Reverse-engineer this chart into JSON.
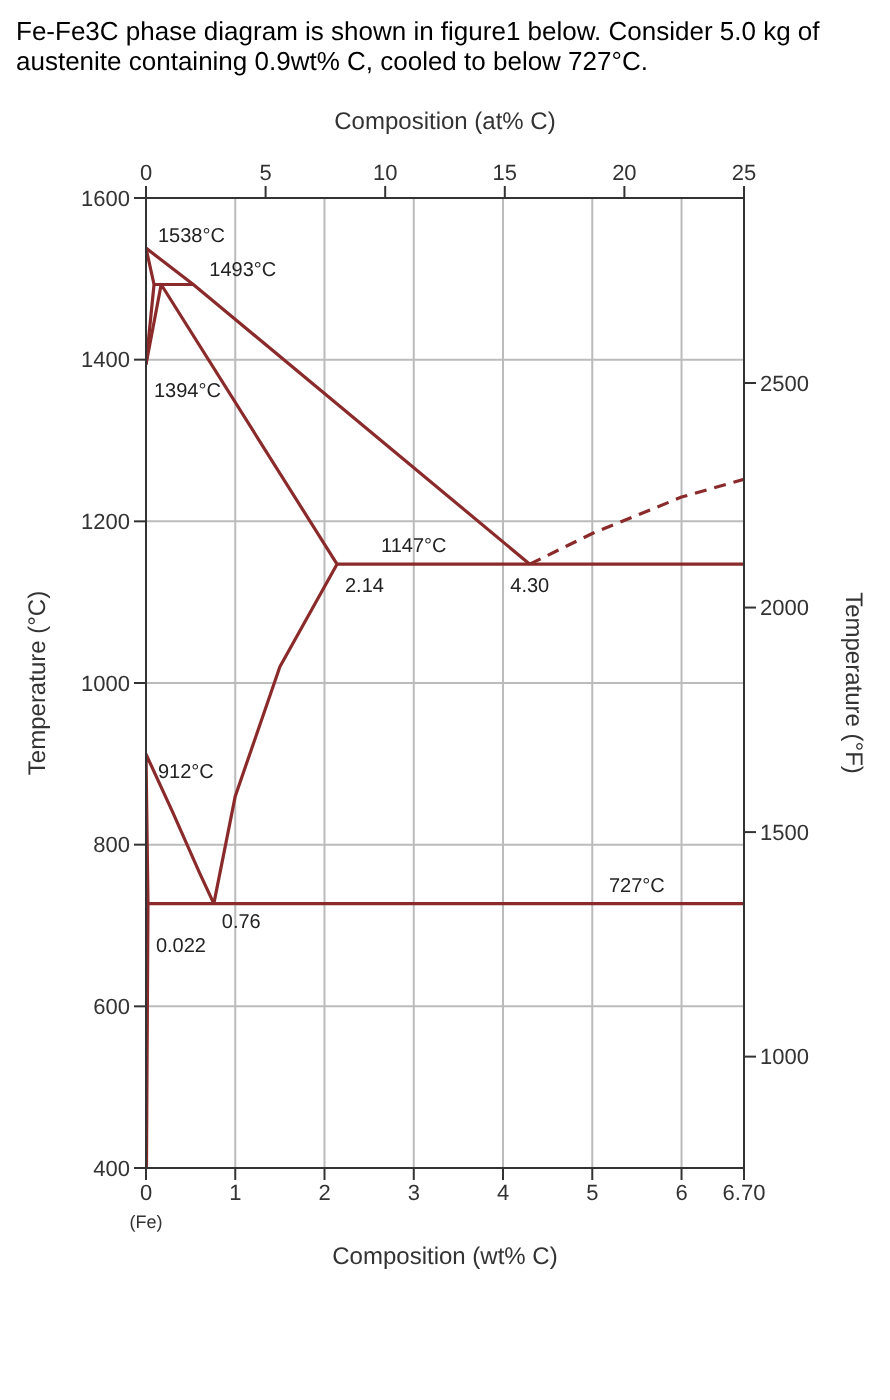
{
  "chart_data": {
    "type": "line",
    "title": "Fe-Fe3C phase diagram is shown in figure1 below. Consider 5.0 kg of austenite containing 0.9wt% C, cooled to below 727°C.",
    "xlabel": "Composition (wt% C)",
    "ylabel": "Temperature (°C)",
    "x2label": "Composition (at% C)",
    "y2label": "Temperature (°F)",
    "xlim": [
      0,
      6.7
    ],
    "xticks": [
      0,
      1,
      2,
      3,
      4,
      5,
      6,
      {
        "value": 6.7,
        "label": "6.70"
      }
    ],
    "ylim": [
      400,
      1600
    ],
    "yticks": [
      400,
      600,
      800,
      1000,
      1200,
      1400,
      1600
    ],
    "x2lim": [
      0,
      25
    ],
    "x2ticks": [
      0,
      5,
      10,
      15,
      20,
      25
    ],
    "y2lim": [
      752,
      2912
    ],
    "y2ticks": [
      1000,
      1500,
      2000,
      2500
    ],
    "grid": true,
    "series": [
      {
        "color": "#8b2a2a",
        "x": [
          0,
          0.53,
          4.3
        ],
        "values": [
          1538,
          1493,
          1147
        ]
      },
      {
        "color": "#8b2a2a",
        "line_style": "dashed",
        "x": [
          4.3,
          5,
          6,
          6.7
        ],
        "values": [
          1147,
          1185,
          1230,
          1252
        ]
      },
      {
        "color": "#8b2a2a",
        "x": [
          0,
          0.09,
          0
        ],
        "values": [
          1538,
          1493,
          1394
        ]
      },
      {
        "color": "#8b2a2a",
        "x": [
          0.09,
          0.53
        ],
        "values": [
          1493,
          1493
        ]
      },
      {
        "color": "#8b2a2a",
        "x": [
          0,
          0.17,
          2.14
        ],
        "values": [
          1394,
          1493,
          1147
        ]
      },
      {
        "color": "#8b2a2a",
        "x": [
          2.14,
          6.7
        ],
        "values": [
          1147,
          1147
        ]
      },
      {
        "color": "#8b2a2a",
        "x": [
          2.14,
          1.5,
          1.0,
          0.76
        ],
        "values": [
          1147,
          1020,
          860,
          727
        ]
      },
      {
        "color": "#8b2a2a",
        "x": [
          0.005,
          0.022,
          0,
          0.3,
          0.6,
          0.76
        ],
        "values": [
          400,
          727,
          912,
          840,
          765,
          727
        ]
      },
      {
        "color": "#8b2a2a",
        "x": [
          0.022,
          6.7
        ],
        "values": [
          727,
          727
        ]
      }
    ],
    "annotations": [
      {
        "text": "1538°C",
        "x": 0,
        "y": 1538
      },
      {
        "text": "1493°C",
        "x": 0.53,
        "y": 1493
      },
      {
        "text": "1394°C",
        "x": 0,
        "y": 1394
      },
      {
        "text": "912°C",
        "x": 0,
        "y": 912
      },
      {
        "text": "0.76",
        "x": 0.76,
        "y": 727
      },
      {
        "text": "0.022",
        "x": 0.022,
        "y": 727
      },
      {
        "text": "2.14",
        "x": 2.14,
        "y": 1147
      },
      {
        "text": "1147°C",
        "x": 3,
        "y": 1147
      },
      {
        "text": "4.30",
        "x": 4.3,
        "y": 1147
      },
      {
        "text": "727°C",
        "x": 5.5,
        "y": 727
      },
      "(Fe)"
    ]
  }
}
